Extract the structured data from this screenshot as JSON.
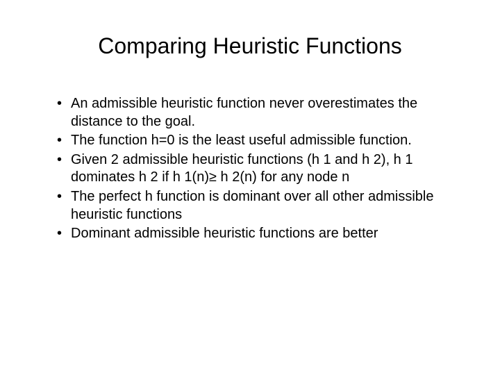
{
  "slide": {
    "title": "Comparing Heuristic Functions",
    "bullets": [
      "An admissible heuristic function never overestimates the distance to the goal.",
      "The function h=0 is the least useful admissible function.",
      "Given 2 admissible heuristic functions (h 1 and h 2), h 1 dominates h 2 if h 1(n)≥ h 2(n) for any node n",
      "The perfect h function is dominant over all other admissible heuristic functions",
      "Dominant admissible heuristic functions are better"
    ],
    "colors": {
      "background": "#ffffff",
      "text": "#000000"
    },
    "typography": {
      "title_fontsize": 32,
      "body_fontsize": 20,
      "font_family": "Arial"
    }
  }
}
